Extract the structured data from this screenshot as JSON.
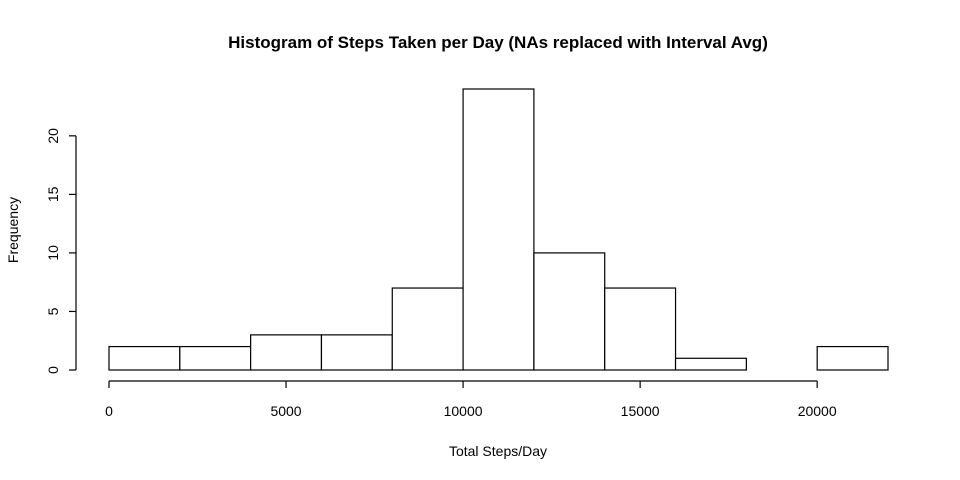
{
  "chart_data": {
    "type": "bar",
    "title": "Histogram of Steps Taken per Day (NAs replaced with Interval Avg)",
    "xlabel": "Total Steps/Day",
    "ylabel": "Frequency",
    "bin_edges": [
      0,
      2000,
      4000,
      6000,
      8000,
      10000,
      12000,
      14000,
      16000,
      18000,
      20000,
      22000
    ],
    "values": [
      2,
      2,
      3,
      3,
      7,
      24,
      10,
      7,
      1,
      0,
      2
    ],
    "xlim": [
      0,
      22000
    ],
    "ylim": [
      0,
      24
    ],
    "x_ticks": [
      0,
      5000,
      10000,
      15000,
      20000
    ],
    "y_ticks": [
      0,
      5,
      10,
      15,
      20
    ],
    "grid": false,
    "colors": {
      "bar_fill": "#ffffff",
      "bar_stroke": "#000000"
    }
  }
}
